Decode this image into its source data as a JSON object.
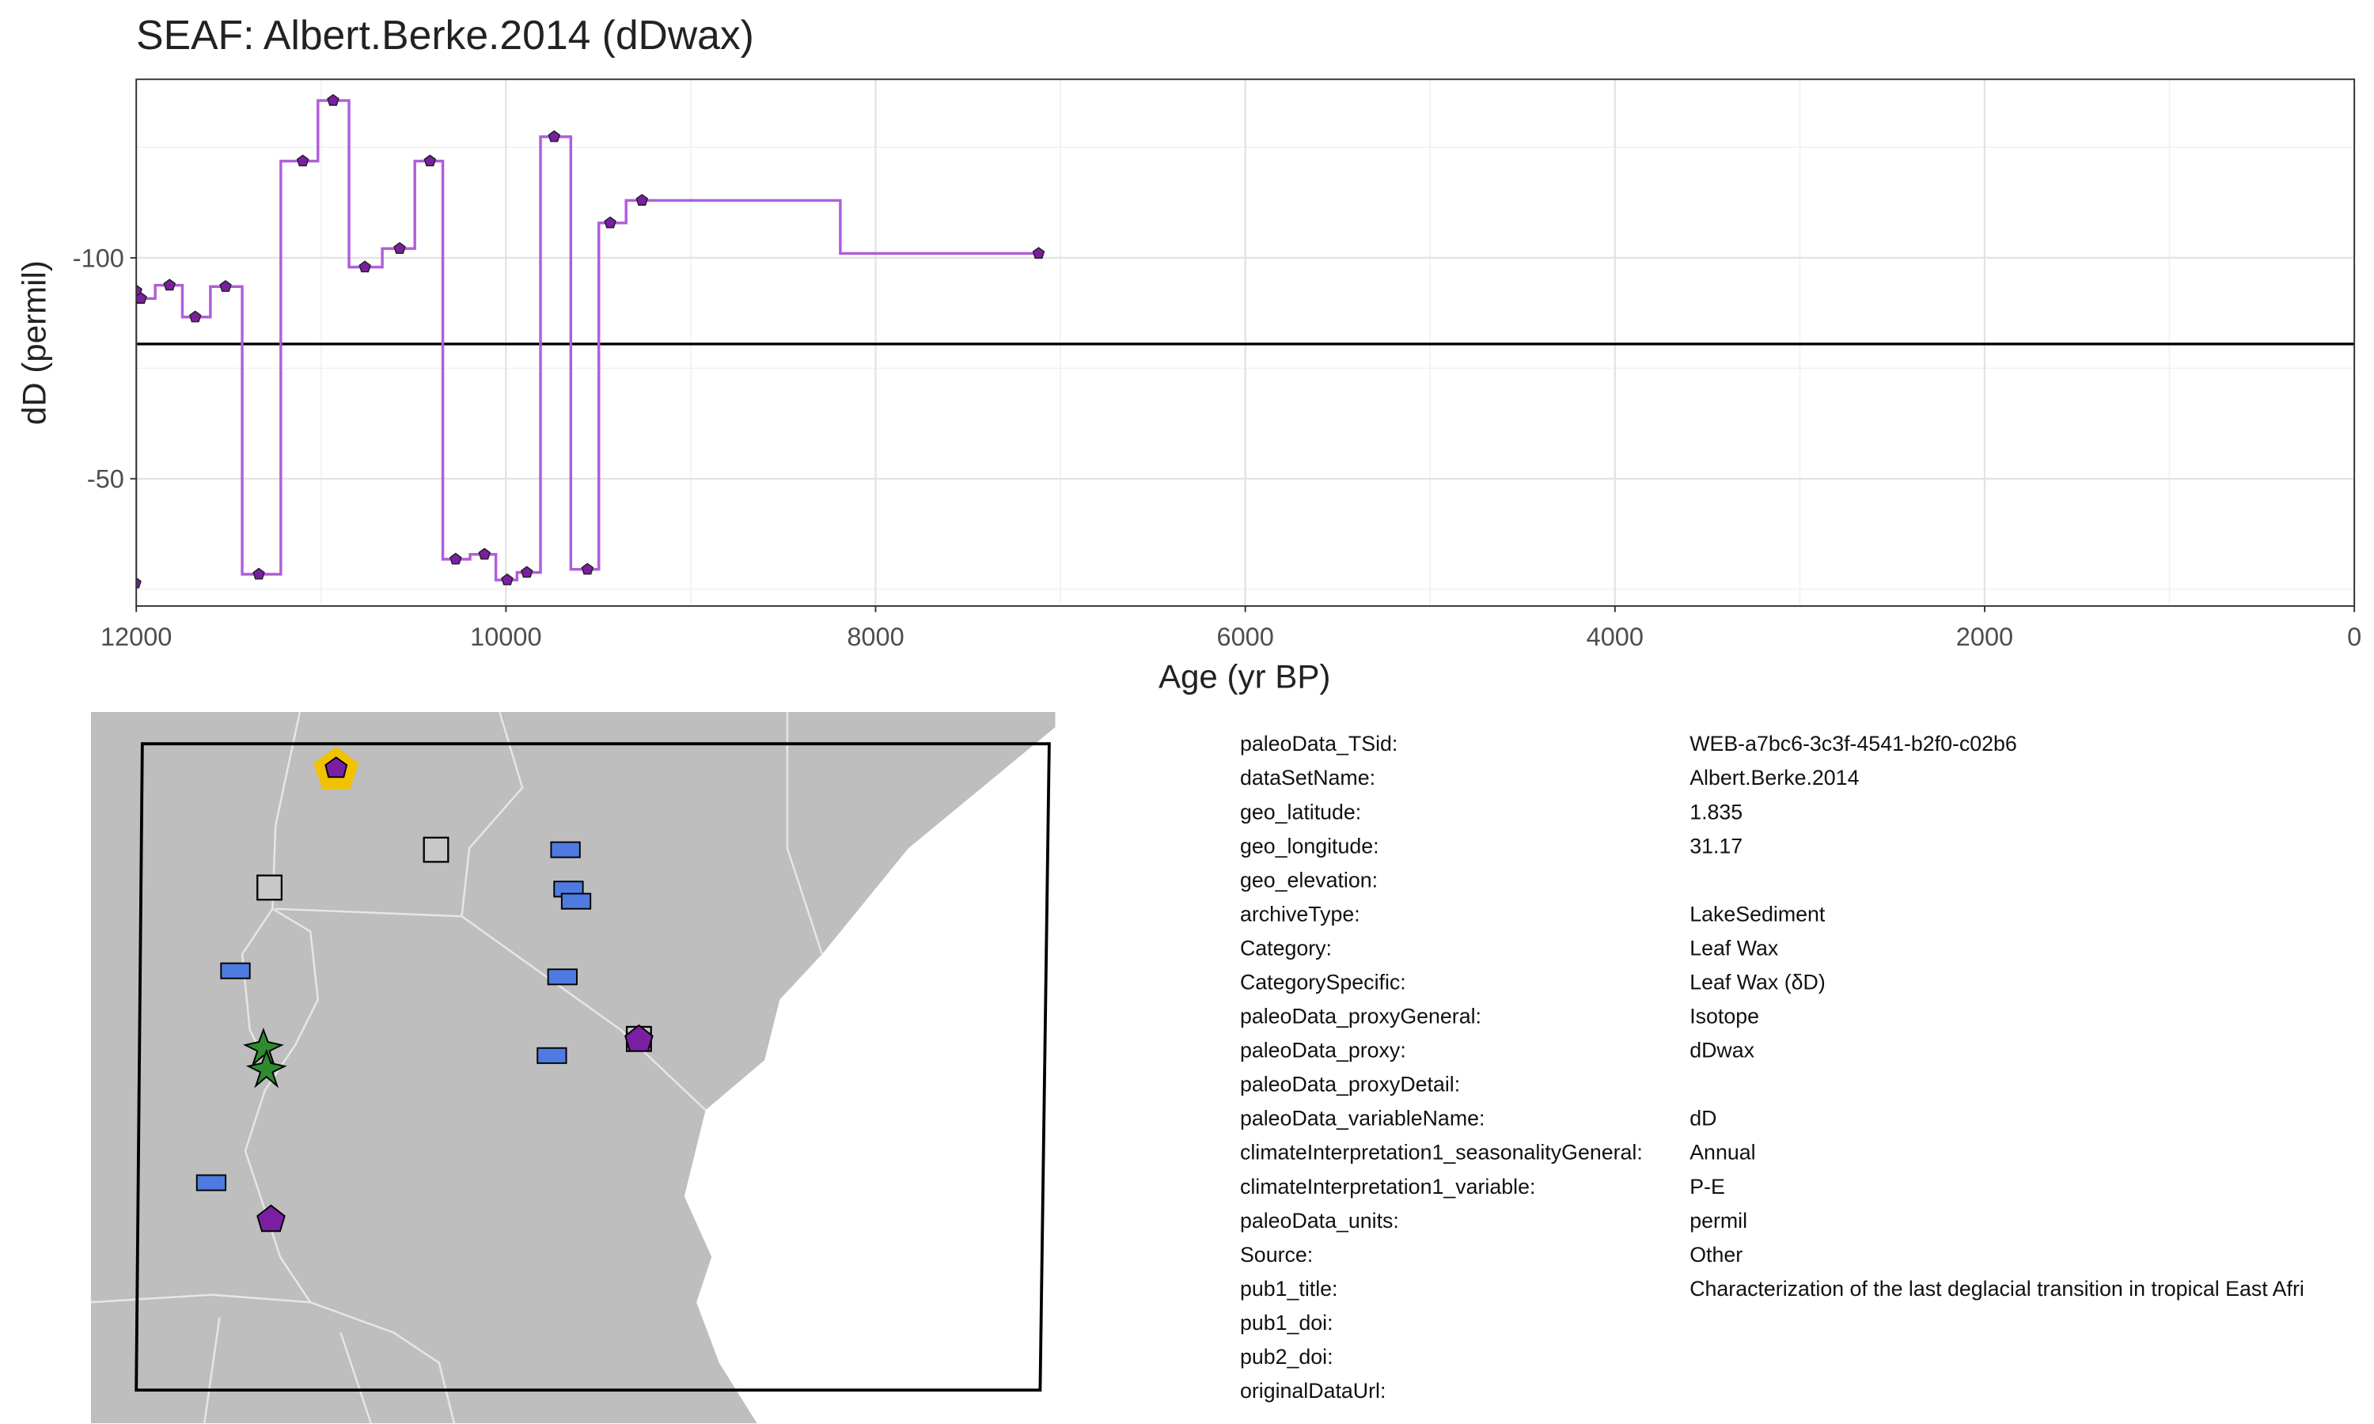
{
  "chart_data": {
    "type": "step",
    "step": "mid",
    "title": "SEAF: Albert.Berke.2014 (dDwax)",
    "x_label": "Age (yr BP)",
    "y_label": "dD (permil)",
    "x": [
      12005,
      12000,
      11975,
      11820,
      11681,
      11517,
      11337,
      11099,
      10935,
      10763,
      10575,
      10411,
      10272,
      10116,
      9993,
      9887,
      9739,
      9559,
      9436,
      9264,
      7118
    ],
    "values": [
      -26.4,
      -92.5,
      -90.8,
      -93.8,
      -86.6,
      -93.5,
      -28.4,
      -121.9,
      -135.6,
      -97.9,
      -102.1,
      -121.9,
      -31.8,
      -32.9,
      -27.1,
      -28.8,
      -127.4,
      -29.5,
      -107.9,
      -113.0,
      -101.0
    ],
    "line_color": "#b05ddb",
    "point_color": "#7b1fa2",
    "xlim": [
      12000,
      0
    ],
    "xticks": [
      12000,
      10000,
      8000,
      6000,
      4000,
      2000,
      0
    ],
    "xminor": [
      11000,
      9000,
      7000,
      5000,
      3000,
      1000
    ],
    "ylim": [
      -21.2,
      -140.4
    ],
    "yticks": [
      -100,
      -50
    ],
    "yminor": [
      -125,
      -75,
      -25
    ],
    "hline": -80.5,
    "grid": true
  },
  "metadata": {
    "rows": [
      [
        "paleoData_TSid:",
        "WEB-a7bc6-3c3f-4541-b2f0-c02b6"
      ],
      [
        "dataSetName:",
        "Albert.Berke.2014"
      ],
      [
        "geo_latitude:",
        "1.835"
      ],
      [
        "geo_longitude:",
        "31.17"
      ],
      [
        "geo_elevation:"
      ],
      [
        "archiveType:",
        "LakeSediment"
      ],
      [
        "Category:",
        "Leaf Wax"
      ],
      [
        "CategorySpecific:",
        "Leaf Wax (δD)"
      ],
      [
        "paleoData_proxyGeneral:",
        "Isotope"
      ],
      [
        "paleoData_proxy:",
        "dDwax"
      ],
      [
        "paleoData_proxyDetail:"
      ],
      [
        "paleoData_variableName:",
        "dD"
      ],
      [
        "climateInterpretation1_seasonalityGeneral:",
        "Annual"
      ],
      [
        "climateInterpretation1_variable:",
        "P-E"
      ],
      [
        "paleoData_units:",
        "permil"
      ],
      [
        "Source:",
        "Other"
      ],
      [
        "pub1_title:",
        "Characterization of the last deglacial transition in tropical East Afri"
      ],
      [
        "pub1_doi:"
      ],
      [
        "pub2_doi:"
      ],
      [
        "originalDataUrl:"
      ]
    ]
  }
}
